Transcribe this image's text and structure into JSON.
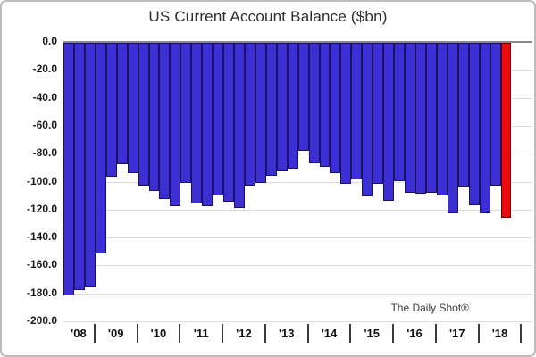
{
  "title": "US Current Account Balance ($bn)",
  "watermark": "The Daily Shot®",
  "colors": {
    "bar_fill": "#3b2ed2",
    "bar_border": "#1c1060",
    "highlight_fill": "#ec0b0c",
    "highlight_border": "#6b0000",
    "gridline": "#dcdcdc",
    "zero_line": "#8a8a8a",
    "axis_text": "#1a1a1a"
  },
  "chart_data": {
    "type": "bar",
    "title": "US Current Account Balance ($bn)",
    "unit": "$bn",
    "frequency": "quarterly",
    "ylim": [
      -200,
      0
    ],
    "ytick_step": 20,
    "ytick_labels": [
      "0.0",
      "-20.0",
      "-40.0",
      "-60.0",
      "-80.0",
      "-100.0",
      "-120.0",
      "-140.0",
      "-160.0",
      "-180.0",
      "-200.0"
    ],
    "grid": true,
    "legend": false,
    "highlight_last_bar": true,
    "groups": [
      {
        "year": "'08",
        "values": [
          -181,
          -177,
          -175
        ]
      },
      {
        "year": "'09",
        "values": [
          -151,
          -96,
          -87,
          -93
        ]
      },
      {
        "year": "'10",
        "values": [
          -102,
          -106,
          -112,
          -117
        ]
      },
      {
        "year": "'11",
        "values": [
          -100,
          -115,
          -117,
          -109
        ]
      },
      {
        "year": "'12",
        "values": [
          -114,
          -118,
          -102,
          -100
        ]
      },
      {
        "year": "'13",
        "values": [
          -95,
          -92,
          -90,
          -77
        ]
      },
      {
        "year": "'14",
        "values": [
          -86,
          -89,
          -93,
          -101
        ]
      },
      {
        "year": "'15",
        "values": [
          -98,
          -110,
          -101,
          -113
        ]
      },
      {
        "year": "'16",
        "values": [
          -99,
          -107,
          -108,
          -107
        ]
      },
      {
        "year": "'17",
        "values": [
          -109,
          -122,
          -103,
          -116
        ]
      },
      {
        "year": "'18",
        "values": [
          -122,
          -102,
          -125
        ],
        "trailing_empty_slots": 1
      }
    ]
  }
}
